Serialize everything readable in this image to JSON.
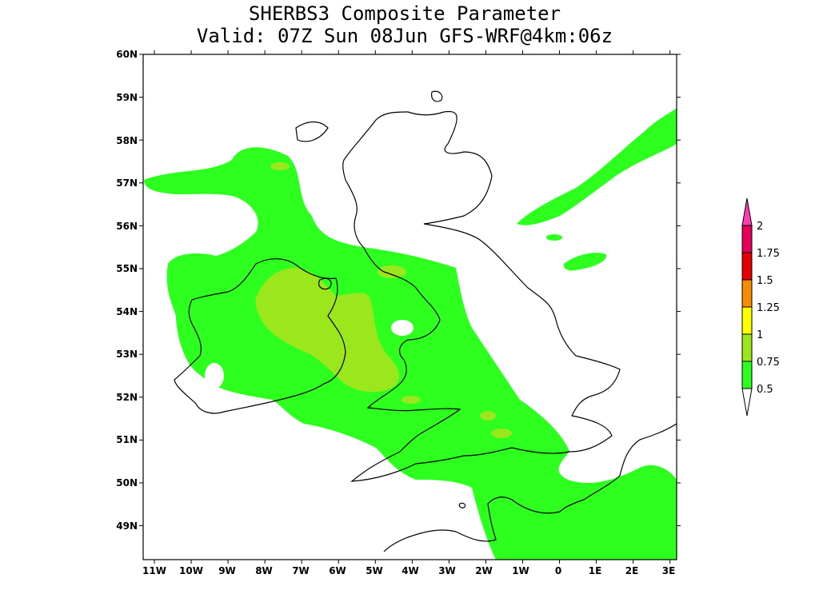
{
  "title_line1": "SHERBS3 Composite Parameter",
  "title_line2": "Valid: 07Z Sun 08Jun GFS-WRF@4km:06z",
  "lat_labels": [
    "60N",
    "59N",
    "58N",
    "57N",
    "56N",
    "55N",
    "54N",
    "53N",
    "52N",
    "51N",
    "50N",
    "49N"
  ],
  "lon_labels": [
    "11W",
    "10W",
    "9W",
    "8W",
    "7W",
    "6W",
    "5W",
    "4W",
    "3W",
    "2W",
    "1W",
    "0",
    "1E",
    "2E",
    "3E"
  ],
  "colorbar": {
    "levels": [
      "0.5",
      "0.75",
      "1",
      "1.25",
      "1.5",
      "1.75",
      "2"
    ],
    "colors": [
      "#ffffff",
      "#2dff1f",
      "#9be61d",
      "#ffff00",
      "#f78c00",
      "#e60000",
      "#e6005a",
      "#ff3cb4"
    ]
  }
}
